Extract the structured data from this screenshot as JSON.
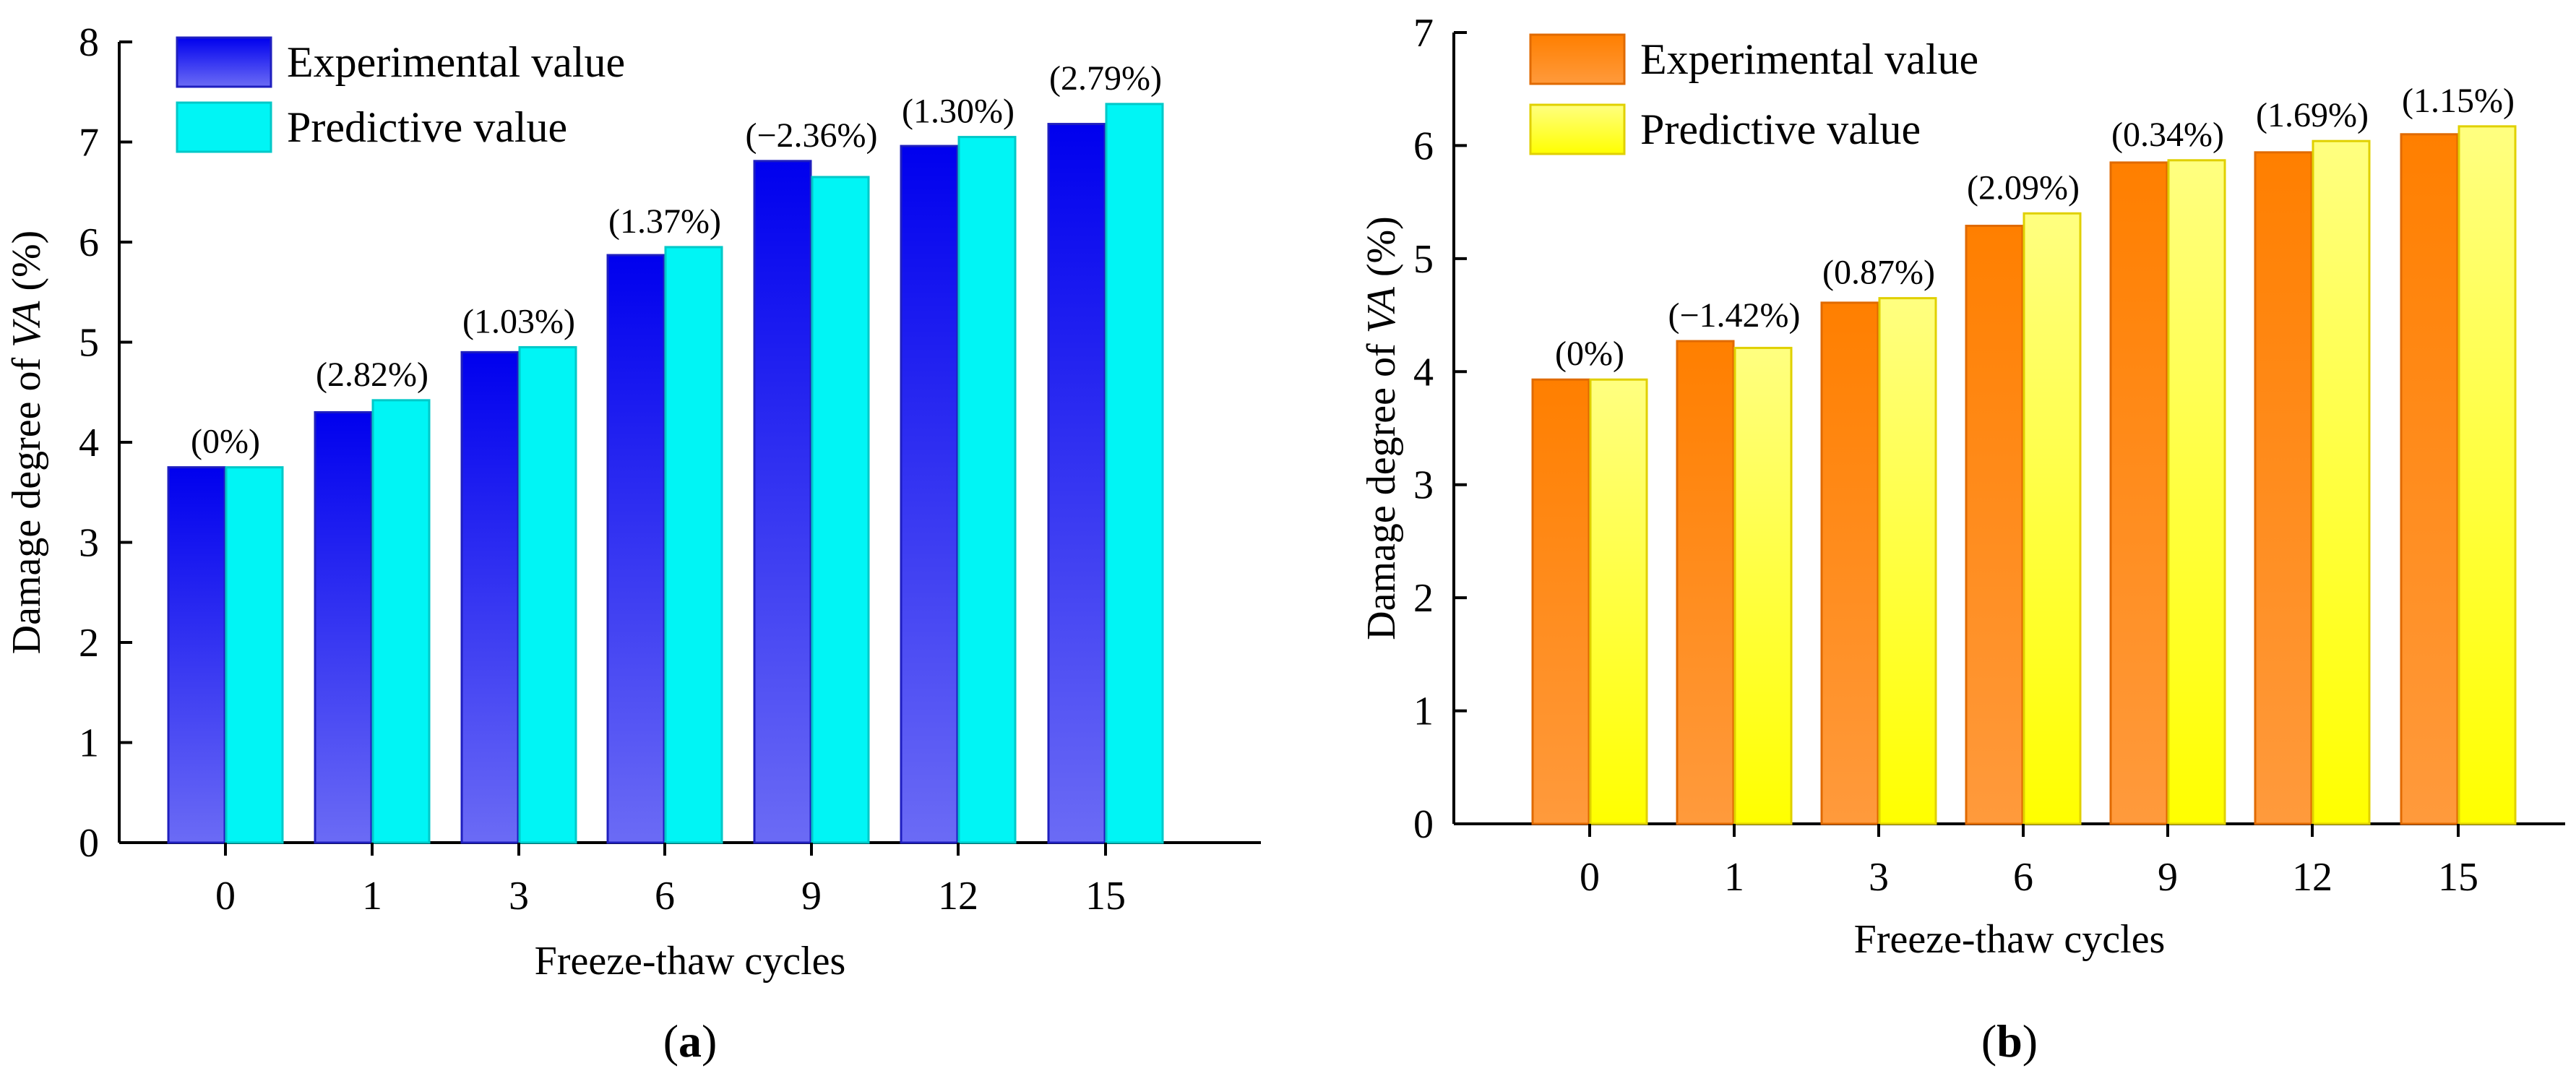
{
  "chart_data": [
    {
      "type": "bar",
      "panel_label": "a",
      "categories": [
        "0",
        "1",
        "3",
        "6",
        "9",
        "12",
        "15"
      ],
      "series": [
        {
          "name": "Experimental value",
          "values": [
            3.75,
            4.3,
            4.9,
            5.87,
            6.81,
            6.96,
            7.18
          ]
        },
        {
          "name": "Predictive value",
          "values": [
            3.75,
            4.42,
            4.95,
            5.95,
            6.65,
            7.05,
            7.38
          ]
        }
      ],
      "annotations": [
        "(0%)",
        "(2.82%)",
        "(1.03%)",
        "(1.37%)",
        "(−2.36%)",
        "(1.30%)",
        "(2.79%)"
      ],
      "title": "",
      "xlabel": "Freeze-thaw cycles",
      "ylabel_prefix": "Damage degree of ",
      "ylabel_italic": "VA",
      "ylabel_suffix": " (%)",
      "ylim": [
        0,
        8
      ],
      "yticks": [
        0,
        1,
        2,
        3,
        4,
        5,
        6,
        7,
        8
      ],
      "legend_position": "top-left",
      "grid": false,
      "colors": {
        "s0_top": "#0000ee",
        "s0_bottom": "#6b6bf5",
        "s0_edge": "#1f1fbf",
        "s1_fill": "#00f5f5",
        "s1_edge": "#00c8c8"
      }
    },
    {
      "type": "bar",
      "panel_label": "b",
      "categories": [
        "0",
        "1",
        "3",
        "6",
        "9",
        "12",
        "15"
      ],
      "series": [
        {
          "name": "Experimental value",
          "values": [
            3.93,
            4.27,
            4.61,
            5.29,
            5.85,
            5.94,
            6.1
          ]
        },
        {
          "name": "Predictive value",
          "values": [
            3.93,
            4.21,
            4.65,
            5.4,
            5.87,
            6.04,
            6.17
          ]
        }
      ],
      "annotations": [
        "(0%)",
        "(−1.42%)",
        "(0.87%)",
        "(2.09%)",
        "(0.34%)",
        "(1.69%)",
        "(1.15%)"
      ],
      "title": "",
      "xlabel": "Freeze-thaw cycles",
      "ylabel_prefix": "Damage degree of ",
      "ylabel_italic": "VA",
      "ylabel_suffix": " (%)",
      "ylim": [
        0,
        7
      ],
      "yticks": [
        0,
        1,
        2,
        3,
        4,
        5,
        6,
        7
      ],
      "legend_position": "top-left",
      "grid": false,
      "colors": {
        "s0_top": "#ff7f00",
        "s0_bottom": "#ff9a3c",
        "s0_edge": "#e06a00",
        "s1_top": "#ffff80",
        "s1_bottom": "#ffff00",
        "s1_edge": "#e0d000"
      }
    }
  ]
}
